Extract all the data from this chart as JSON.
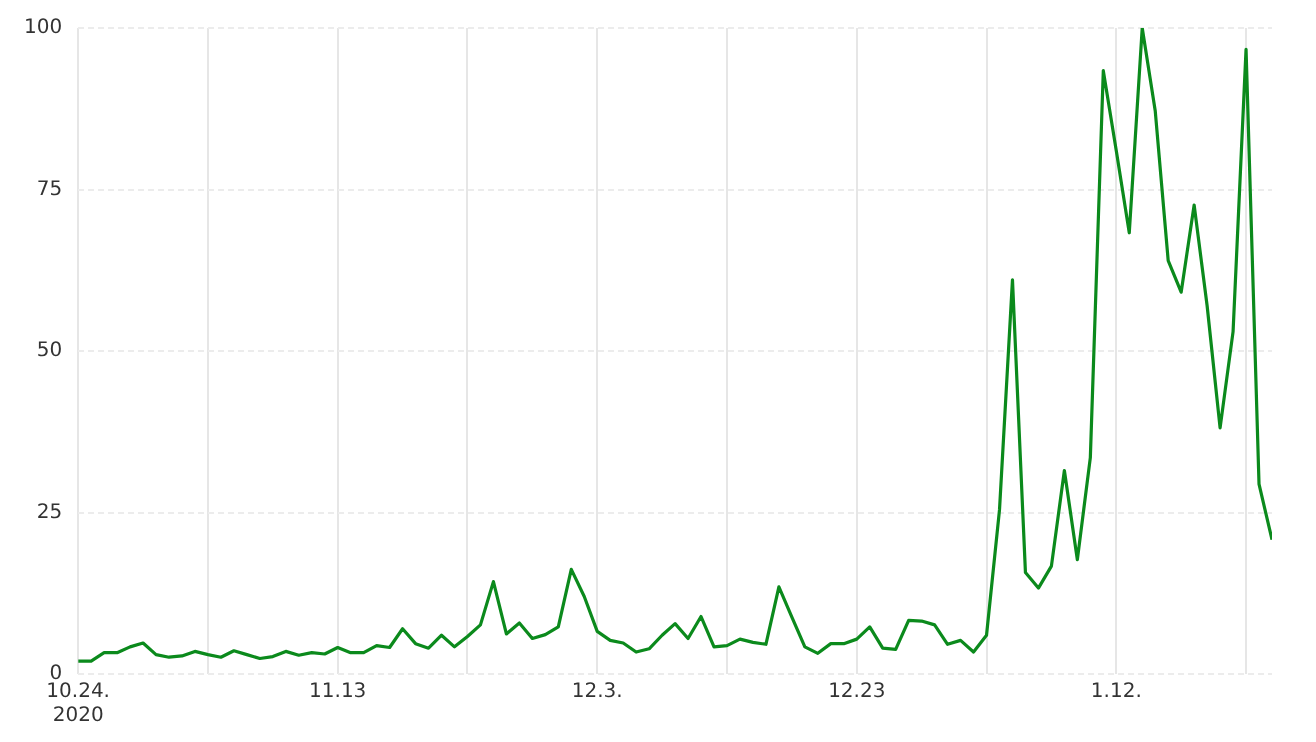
{
  "chart_data": {
    "type": "line",
    "x": [
      "2020-10-24",
      "2020-10-25",
      "2020-10-26",
      "2020-10-27",
      "2020-10-28",
      "2020-10-29",
      "2020-10-30",
      "2020-10-31",
      "2020-11-01",
      "2020-11-02",
      "2020-11-03",
      "2020-11-04",
      "2020-11-05",
      "2020-11-06",
      "2020-11-07",
      "2020-11-08",
      "2020-11-09",
      "2020-11-10",
      "2020-11-11",
      "2020-11-12",
      "2020-11-13",
      "2020-11-14",
      "2020-11-15",
      "2020-11-16",
      "2020-11-17",
      "2020-11-18",
      "2020-11-19",
      "2020-11-20",
      "2020-11-21",
      "2020-11-22",
      "2020-11-23",
      "2020-11-24",
      "2020-11-25",
      "2020-11-26",
      "2020-11-27",
      "2020-11-28",
      "2020-11-29",
      "2020-11-30",
      "2020-12-01",
      "2020-12-02",
      "2020-12-03",
      "2020-12-04",
      "2020-12-05",
      "2020-12-06",
      "2020-12-07",
      "2020-12-08",
      "2020-12-09",
      "2020-12-10",
      "2020-12-11",
      "2020-12-12",
      "2020-12-13",
      "2020-12-14",
      "2020-12-15",
      "2020-12-16",
      "2020-12-17",
      "2020-12-18",
      "2020-12-19",
      "2020-12-20",
      "2020-12-21",
      "2020-12-22",
      "2020-12-23",
      "2020-12-24",
      "2020-12-25",
      "2020-12-26",
      "2020-12-27",
      "2020-12-28",
      "2020-12-29",
      "2020-12-30",
      "2020-12-31",
      "2021-01-01",
      "2021-01-02",
      "2021-01-03",
      "2021-01-04",
      "2021-01-05",
      "2021-01-06",
      "2021-01-07",
      "2021-01-08",
      "2021-01-09",
      "2021-01-10",
      "2021-01-11",
      "2021-01-12",
      "2021-01-13",
      "2021-01-14",
      "2021-01-15",
      "2021-01-16",
      "2021-01-17",
      "2021-01-18",
      "2021-01-19",
      "2021-01-20",
      "2021-01-21",
      "2021-01-22",
      "2021-01-23",
      "2021-01-24"
    ],
    "series": [
      {
        "color": "#0b8a1c",
        "values": [
          2,
          2,
          3.3,
          3.3,
          4.2,
          4.8,
          3,
          2.6,
          2.8,
          3.5,
          3,
          2.6,
          3.6,
          3,
          2.4,
          2.7,
          3.5,
          2.9,
          3.3,
          3.1,
          4.1,
          3.3,
          3.3,
          4.4,
          4.1,
          7,
          4.7,
          4,
          6,
          4.2,
          5.8,
          7.6,
          14.3,
          6.2,
          7.9,
          5.5,
          6.1,
          7.3,
          16.2,
          12,
          6.6,
          5.2,
          4.8,
          3.4,
          3.9,
          6,
          7.8,
          5.5,
          8.9,
          4.2,
          4.4,
          5.4,
          4.9,
          4.6,
          13.5,
          8.8,
          4.2,
          3.2,
          4.7,
          4.7,
          5.4,
          7.3,
          4,
          3.8,
          8.3,
          8.2,
          7.6,
          4.6,
          5.2,
          3.4,
          6,
          25.4,
          61,
          15.7,
          13.3,
          16.7,
          31.5,
          17.7,
          33.5,
          93.4,
          81,
          68.3,
          100,
          87.2,
          64,
          59.1,
          72.6,
          57,
          38.1,
          53,
          96.7,
          29.4,
          20.8
        ]
      }
    ],
    "xlim": [
      "2020-10-24",
      "2021-01-24"
    ],
    "xticks": [
      {
        "value": "2020-10-24",
        "label": "10.24.\n2020"
      },
      {
        "value": "2020-11-03",
        "label": null
      },
      {
        "value": "2020-11-13",
        "label": "11.13"
      },
      {
        "value": "2020-11-23",
        "label": null
      },
      {
        "value": "2020-12-03",
        "label": "12.3."
      },
      {
        "value": "2020-12-13",
        "label": null
      },
      {
        "value": "2020-12-23",
        "label": "12.23"
      },
      {
        "value": "2021-01-02",
        "label": null
      },
      {
        "value": "2021-01-12",
        "label": "1.12."
      },
      {
        "value": "2021-01-22",
        "label": null
      }
    ],
    "ylim": [
      0,
      100
    ],
    "yticks": [
      0,
      25,
      50,
      75,
      100
    ],
    "grid": true
  }
}
